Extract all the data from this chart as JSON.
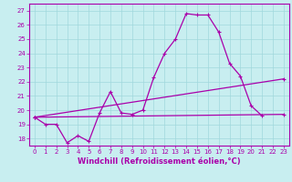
{
  "xlabel": "Windchill (Refroidissement éolien,°C)",
  "background_color": "#c8eef0",
  "grid_color": "#a0d8dc",
  "line_color": "#aa00aa",
  "spine_color": "#aa00aa",
  "xlim": [
    -0.5,
    23.5
  ],
  "ylim": [
    17.5,
    27.5
  ],
  "yticks": [
    18,
    19,
    20,
    21,
    22,
    23,
    24,
    25,
    26,
    27
  ],
  "xticks": [
    0,
    1,
    2,
    3,
    4,
    5,
    6,
    7,
    8,
    9,
    10,
    11,
    12,
    13,
    14,
    15,
    16,
    17,
    18,
    19,
    20,
    21,
    22,
    23
  ],
  "series_main": {
    "x": [
      0,
      1,
      2,
      3,
      4,
      5,
      6,
      7,
      8,
      9,
      10,
      11,
      12,
      13,
      14,
      15,
      16,
      17,
      18,
      19,
      20,
      21
    ],
    "y": [
      19.5,
      19.0,
      19.0,
      17.7,
      18.2,
      17.8,
      19.8,
      21.3,
      19.8,
      19.7,
      20.0,
      22.3,
      24.0,
      25.0,
      26.8,
      26.7,
      26.7,
      25.5,
      23.3,
      22.4,
      20.3,
      19.6
    ]
  },
  "series_flat": {
    "x": [
      0,
      23
    ],
    "y": [
      19.5,
      19.7
    ]
  },
  "series_diag": {
    "x": [
      0,
      23
    ],
    "y": [
      19.5,
      22.2
    ]
  },
  "tick_fontsize": 5,
  "xlabel_fontsize": 6,
  "linewidth": 0.9,
  "markersize": 3,
  "markeredgewidth": 0.8
}
